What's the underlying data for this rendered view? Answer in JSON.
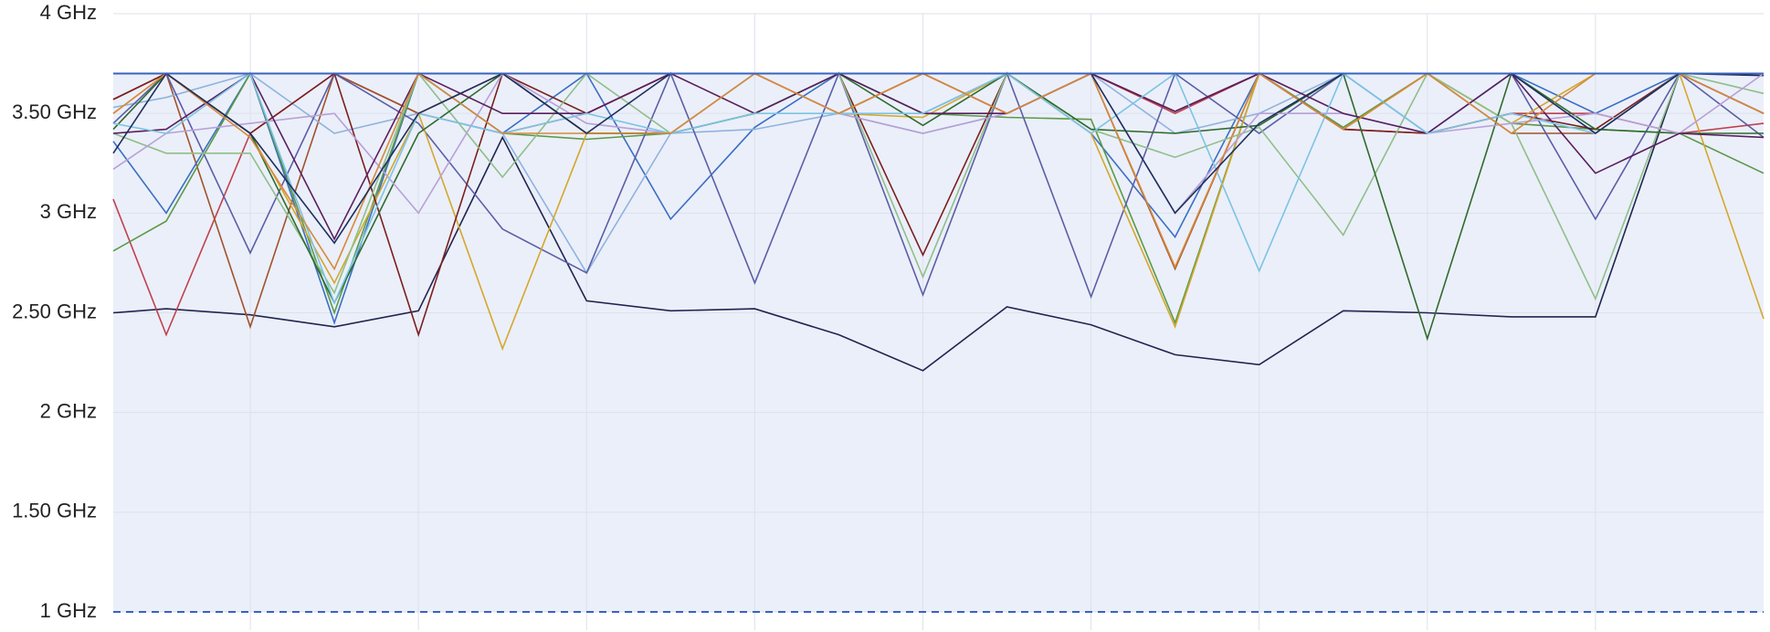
{
  "chart_data": {
    "type": "line",
    "x": [
      0,
      0.63,
      1.63,
      2.63,
      3.63,
      4.63,
      5.63,
      6.63,
      7.63,
      8.63,
      9.63,
      10.63,
      11.63,
      12.63,
      13.63,
      14.63,
      15.63,
      16.63,
      17.63,
      18.63,
      19.63
    ],
    "xlim": [
      0,
      19.63
    ],
    "ylim": [
      1,
      4
    ],
    "yticks": [
      {
        "value": 1,
        "label": "1 GHz"
      },
      {
        "value": 1.5,
        "label": "1.50 GHz"
      },
      {
        "value": 2,
        "label": "2 GHz"
      },
      {
        "value": 2.5,
        "label": "2.50 GHz"
      },
      {
        "value": 3,
        "label": "3 GHz"
      },
      {
        "value": 3.5,
        "label": "3.50 GHz"
      },
      {
        "value": 4,
        "label": "4 GHz"
      }
    ],
    "grid": true,
    "range_band": {
      "min": 1,
      "max": 3.7,
      "color": "#3a62c0"
    },
    "series": [
      {
        "color": "#1f2550",
        "values": [
          2.5,
          2.52,
          2.49,
          2.43,
          2.51,
          3.38,
          2.56,
          2.51,
          2.52,
          2.39,
          2.21,
          2.53,
          2.44,
          2.29,
          2.24,
          2.51,
          2.5,
          2.48,
          2.48,
          3.7,
          3.69
        ]
      },
      {
        "color": "#c0404e",
        "values": [
          3.07,
          2.39,
          3.4,
          3.7,
          3.5,
          3.4,
          3.5,
          3.7,
          3.7,
          3.5,
          3.7,
          3.5,
          3.7,
          3.5,
          3.7,
          3.42,
          3.4,
          3.5,
          3.5,
          3.4,
          3.45
        ]
      },
      {
        "color": "#a0522d",
        "values": [
          3.57,
          3.7,
          2.43,
          3.7,
          3.5,
          3.7,
          3.4,
          3.4,
          3.7,
          3.5,
          3.7,
          3.5,
          3.7,
          2.72,
          3.7,
          3.42,
          3.7,
          3.4,
          3.4,
          3.7,
          3.5
        ]
      },
      {
        "color": "#3a6fc4",
        "values": [
          3.36,
          3.0,
          3.7,
          2.45,
          3.7,
          3.4,
          3.7,
          2.97,
          3.43,
          3.7,
          3.5,
          3.7,
          3.4,
          2.88,
          3.7,
          3.7,
          3.4,
          3.7,
          3.5,
          3.7,
          3.7
        ]
      },
      {
        "color": "#8fb3de",
        "values": [
          3.53,
          3.58,
          3.7,
          3.4,
          3.5,
          3.4,
          2.7,
          3.4,
          3.42,
          3.5,
          3.4,
          3.5,
          3.7,
          3.4,
          3.5,
          3.7,
          3.4,
          3.7,
          3.4,
          3.7,
          3.5
        ]
      },
      {
        "color": "#5a9a48",
        "values": [
          2.81,
          2.96,
          3.7,
          2.5,
          3.7,
          3.4,
          3.37,
          3.4,
          3.5,
          3.7,
          3.5,
          3.48,
          3.47,
          2.45,
          3.7,
          3.43,
          3.7,
          3.45,
          3.42,
          3.4,
          3.2
        ]
      },
      {
        "color": "#5b5ea6",
        "values": [
          3.45,
          3.7,
          2.8,
          3.7,
          3.45,
          2.92,
          2.7,
          3.7,
          2.65,
          3.7,
          2.59,
          3.7,
          2.58,
          3.7,
          3.4,
          3.7,
          3.7,
          3.7,
          2.97,
          3.7,
          3.38
        ]
      },
      {
        "color": "#d4a72c",
        "values": [
          3.5,
          3.7,
          3.4,
          2.65,
          3.5,
          2.32,
          3.4,
          3.4,
          3.7,
          3.5,
          3.48,
          3.7,
          3.4,
          2.43,
          3.7,
          3.42,
          3.7,
          3.45,
          3.7,
          3.7,
          2.47
        ]
      },
      {
        "color": "#7b1f1f",
        "values": [
          3.57,
          3.7,
          3.4,
          3.7,
          2.39,
          3.7,
          3.5,
          3.7,
          3.7,
          3.7,
          2.79,
          3.7,
          3.7,
          3.51,
          3.7,
          3.42,
          3.4,
          3.5,
          3.42,
          3.7,
          3.5
        ]
      },
      {
        "color": "#8fbf8a",
        "values": [
          3.4,
          3.3,
          3.3,
          2.6,
          3.7,
          3.18,
          3.7,
          3.4,
          3.7,
          3.7,
          2.68,
          3.7,
          3.42,
          3.28,
          3.43,
          2.89,
          3.7,
          3.45,
          2.57,
          3.7,
          3.6
        ]
      },
      {
        "color": "#2e6b2e",
        "values": [
          3.42,
          3.7,
          3.4,
          2.55,
          3.4,
          3.7,
          3.4,
          3.4,
          3.5,
          3.7,
          3.44,
          3.7,
          3.42,
          3.4,
          3.44,
          3.7,
          2.37,
          3.7,
          3.42,
          3.4,
          3.4
        ]
      },
      {
        "color": "#b8a0d8",
        "values": [
          3.22,
          3.4,
          3.45,
          3.5,
          3.0,
          3.7,
          3.45,
          3.4,
          3.7,
          3.5,
          3.4,
          3.5,
          3.7,
          3.0,
          3.5,
          3.5,
          3.4,
          3.45,
          3.5,
          3.4,
          3.7
        ]
      },
      {
        "color": "#5a1f5e",
        "values": [
          3.4,
          3.42,
          3.7,
          2.87,
          3.7,
          3.5,
          3.5,
          3.7,
          3.5,
          3.7,
          3.5,
          3.5,
          3.7,
          3.51,
          3.7,
          3.5,
          3.4,
          3.7,
          3.2,
          3.4,
          3.38
        ]
      },
      {
        "color": "#7cc4e4",
        "values": [
          3.45,
          3.4,
          3.7,
          2.55,
          3.5,
          3.4,
          3.5,
          3.4,
          3.5,
          3.5,
          3.5,
          3.7,
          3.4,
          3.7,
          2.71,
          3.7,
          3.4,
          3.5,
          3.4,
          3.7,
          3.7
        ]
      },
      {
        "color": "#d68a3c",
        "values": [
          3.5,
          3.7,
          3.38,
          2.72,
          3.7,
          3.4,
          3.4,
          3.4,
          3.7,
          3.5,
          3.7,
          3.5,
          3.7,
          2.73,
          3.7,
          3.42,
          3.7,
          3.4,
          3.7,
          3.7,
          3.5
        ]
      },
      {
        "color": "#1f2f5e",
        "values": [
          3.3,
          3.7,
          3.4,
          2.85,
          3.5,
          3.7,
          3.4,
          3.7,
          3.7,
          3.7,
          3.7,
          3.7,
          3.7,
          3.0,
          3.45,
          3.7,
          3.7,
          3.7,
          3.4,
          3.7,
          3.7
        ]
      }
    ]
  }
}
